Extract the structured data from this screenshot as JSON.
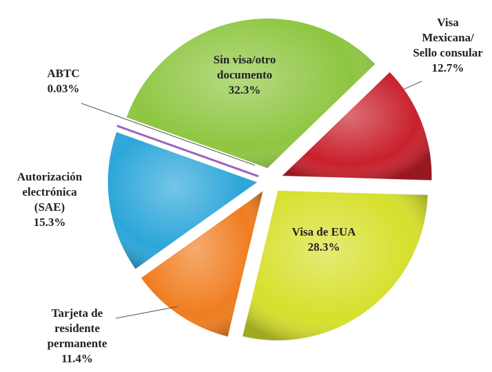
{
  "chart_data": {
    "type": "pie",
    "categories": [
      [
        "Visa",
        "Mexicana/",
        "Sello consular"
      ],
      [
        "Visa de EUA"
      ],
      [
        "Tarjeta de",
        "residente",
        "permanente"
      ],
      [
        "Autorización",
        "electrónica",
        "(SAE)"
      ],
      [
        "ABTC"
      ],
      [
        "Sin visa/otro",
        "documento"
      ]
    ],
    "values": [
      12.7,
      28.3,
      11.4,
      15.3,
      0.03,
      32.3
    ],
    "value_labels": [
      "12.7%",
      "28.3%",
      "11.4%",
      "15.3%",
      "0.03%",
      "32.3%"
    ],
    "colors": [
      "#c9202b",
      "#d6e02c",
      "#f07d1f",
      "#2ba6d9",
      "#9b5fc0",
      "#8ec641"
    ]
  }
}
